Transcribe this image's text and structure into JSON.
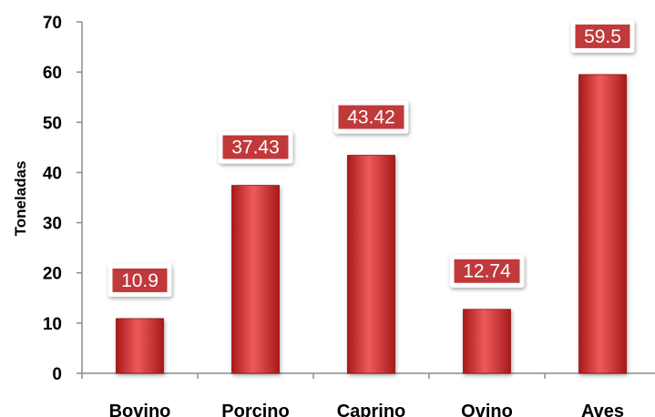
{
  "chart_data": {
    "type": "bar",
    "categories": [
      "Bovino",
      "Porcino",
      "Caprino",
      "Ovino",
      "Aves"
    ],
    "values": [
      10.9,
      37.43,
      43.42,
      12.74,
      59.5
    ],
    "data_labels": [
      "10.9",
      "37.43",
      "43.42",
      "12.74",
      "59.5"
    ],
    "xlabel": "",
    "ylabel": "Toneladas",
    "ylim": [
      0,
      70
    ],
    "yticks": [
      "0",
      "10",
      "20",
      "30",
      "40",
      "50",
      "60",
      "70"
    ],
    "grid": false,
    "legend": "none",
    "colors": {
      "bar_light": "#ee5a5a",
      "bar_dark": "#a81a1a",
      "label_box": "#c0393b",
      "axis": "#8c8c8c"
    }
  }
}
